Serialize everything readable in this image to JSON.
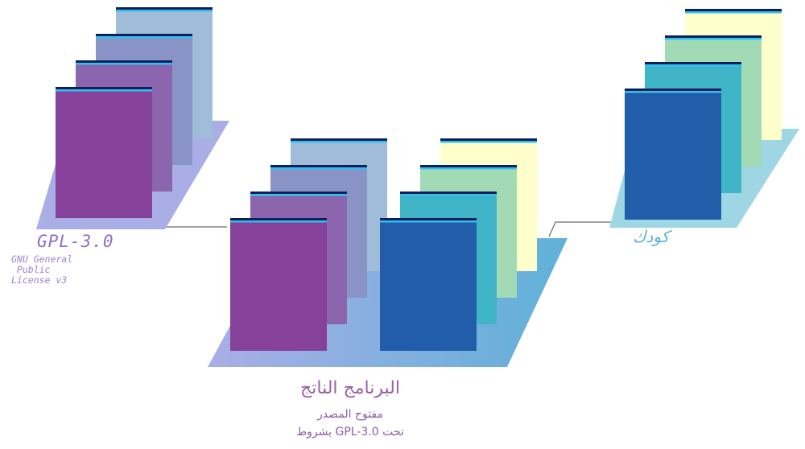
{
  "license_block": {
    "title": "GPL-3.0",
    "subtitle": "GNU General\n Public\nLicense v3",
    "colors": [
      "#86419a",
      "#8b65ad",
      "#8a93c6",
      "#a0bcd9"
    ],
    "platform_color": "#a9aee6"
  },
  "code_block": {
    "label": "كودك",
    "colors": [
      "#215da8",
      "#3fb5c7",
      "#a1dab4",
      "#ffffcc"
    ],
    "platform_color": "#9fd6e4"
  },
  "result_block": {
    "title": "البرنامج الناتج",
    "line1": "مفتوح المصدر",
    "line2": "تحت GPL-3.0 بشروط",
    "platform_colors": [
      "#a9aee6",
      "#5fb1d8"
    ]
  },
  "card_top_colors": [
    "#0f1f5a",
    "#2ec0f0"
  ]
}
